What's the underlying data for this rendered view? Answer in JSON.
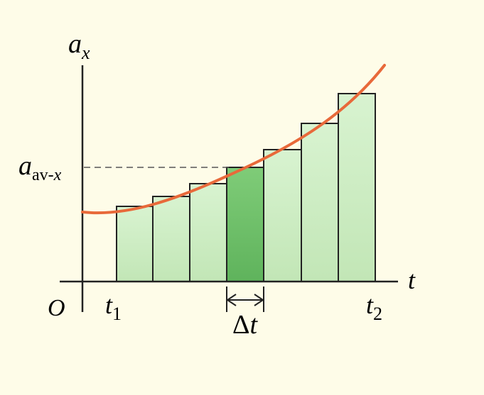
{
  "labels": {
    "y_axis": "a",
    "y_axis_sub": "x",
    "x_axis": "t",
    "origin": "O",
    "t1": "t",
    "t1_sub": "1",
    "t2": "t",
    "t2_sub": "2",
    "avg": "a",
    "avg_sub": "av-",
    "avg_sub_var": "x",
    "delta": "Δ",
    "delta_var": "t"
  },
  "colors": {
    "background": "#fefce8",
    "curve": "#e8693a",
    "bar_light": "#cfeec6",
    "bar_highlight": "#6cc26a",
    "axis": "#222222",
    "dashed": "#555555"
  },
  "bars": {
    "count": 7,
    "highlighted_index": 3
  }
}
